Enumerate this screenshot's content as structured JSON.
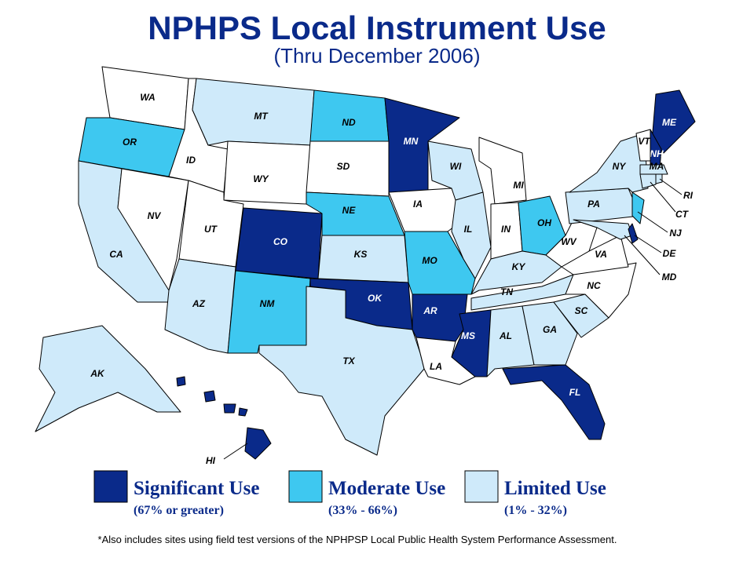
{
  "title": "NPHPS Local Instrument Use",
  "subtitle": "(Thru December 2006)",
  "states": [
    {
      "label": "WA",
      "color": "#ffffff"
    },
    {
      "label": "OR",
      "color": "#3ec8f0"
    },
    {
      "label": "CA",
      "color": "#cfeafa"
    },
    {
      "label": "NV",
      "color": "#ffffff"
    },
    {
      "label": "ID",
      "color": "#ffffff"
    },
    {
      "label": "MT",
      "color": "#cfeafa"
    },
    {
      "label": "WY",
      "color": "#ffffff"
    },
    {
      "label": "UT",
      "color": "#ffffff"
    },
    {
      "label": "CO",
      "color": "#0a2a8a"
    },
    {
      "label": "AZ",
      "color": "#cfeafa"
    },
    {
      "label": "NM",
      "color": "#3ec8f0"
    },
    {
      "label": "ND",
      "color": "#3ec8f0"
    },
    {
      "label": "SD",
      "color": "#ffffff"
    },
    {
      "label": "NE",
      "color": "#3ec8f0"
    },
    {
      "label": "KS",
      "color": "#cfeafa"
    },
    {
      "label": "OK",
      "color": "#0a2a8a"
    },
    {
      "label": "TX",
      "color": "#cfeafa"
    },
    {
      "label": "MN",
      "color": "#0a2a8a"
    },
    {
      "label": "IA",
      "color": "#ffffff"
    },
    {
      "label": "MO",
      "color": "#3ec8f0"
    },
    {
      "label": "AR",
      "color": "#0a2a8a"
    },
    {
      "label": "LA",
      "color": "#ffffff"
    },
    {
      "label": "WI",
      "color": "#cfeafa"
    },
    {
      "label": "IL",
      "color": "#cfeafa"
    },
    {
      "label": "MI",
      "color": "#ffffff"
    },
    {
      "label": "IN",
      "color": "#ffffff"
    },
    {
      "label": "OH",
      "color": "#3ec8f0"
    },
    {
      "label": "KY",
      "color": "#cfeafa"
    },
    {
      "label": "TN",
      "color": "#cfeafa"
    },
    {
      "label": "MS",
      "color": "#0a2a8a"
    },
    {
      "label": "AL",
      "color": "#cfeafa"
    },
    {
      "label": "GA",
      "color": "#cfeafa"
    },
    {
      "label": "FL",
      "color": "#0a2a8a"
    },
    {
      "label": "SC",
      "color": "#cfeafa"
    },
    {
      "label": "NC",
      "color": "#ffffff"
    },
    {
      "label": "VA",
      "color": "#ffffff"
    },
    {
      "label": "WV",
      "color": "#ffffff"
    },
    {
      "label": "PA",
      "color": "#cfeafa"
    },
    {
      "label": "NY",
      "color": "#cfeafa"
    },
    {
      "label": "NJ",
      "color": "#3ec8f0"
    },
    {
      "label": "MD",
      "color": "#cfeafa"
    },
    {
      "label": "DE",
      "color": "#0a2a8a"
    },
    {
      "label": "ME",
      "color": "#0a2a8a"
    },
    {
      "label": "NH",
      "color": "#0a2a8a"
    },
    {
      "label": "VT",
      "color": "#ffffff"
    },
    {
      "label": "MA",
      "color": "#cfeafa"
    },
    {
      "label": "CT",
      "color": "#cfeafa"
    },
    {
      "label": "RI",
      "color": "#cfeafa"
    },
    {
      "label": "AK",
      "color": "#cfeafa"
    },
    {
      "label": "HI",
      "color": "#0a2a8a"
    }
  ],
  "legend": [
    {
      "name": "Significant Use",
      "range": "(67% or greater)",
      "color": "#0a2a8a"
    },
    {
      "name": "Moderate Use",
      "range": "(33% - 66%)",
      "color": "#3ec8f0"
    },
    {
      "name": "Limited Use",
      "range": "(1% - 32%)",
      "color": "#cfeafa"
    }
  ],
  "footnote": "*Also includes sites using field test versions of the NPHPSP Local Public Health System Performance Assessment."
}
